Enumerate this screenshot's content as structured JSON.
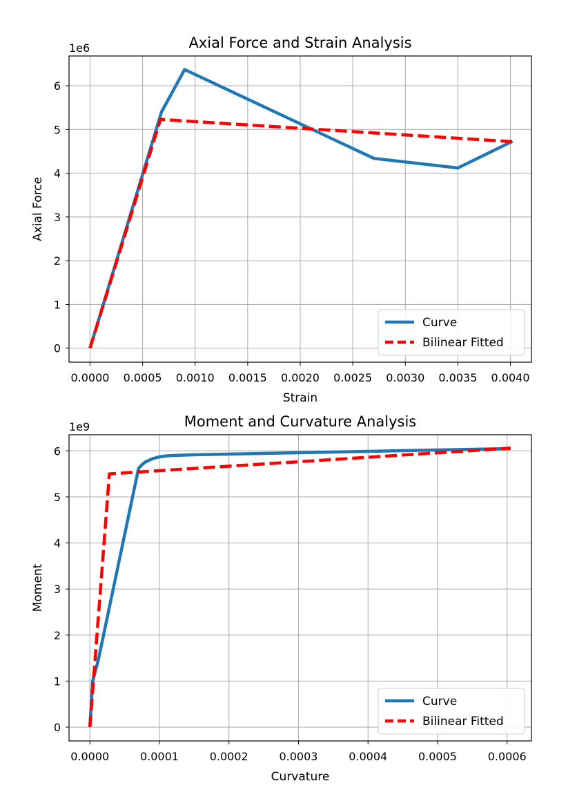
{
  "chart_data": [
    {
      "type": "line",
      "title": "Axial Force and Strain Analysis",
      "xlabel": "Strain",
      "ylabel": "Axial Force",
      "offset_text": "1e6",
      "grid": true,
      "legend_position": "bottom-right",
      "xlim": [
        -0.0002,
        0.0042
      ],
      "ylim": [
        -0.32,
        6.68
      ],
      "xticks": [
        0.0,
        0.0005,
        0.001,
        0.0015,
        0.002,
        0.0025,
        0.003,
        0.0035,
        0.004
      ],
      "xtick_labels": [
        "0.0000",
        "0.0005",
        "0.0010",
        "0.0015",
        "0.0020",
        "0.0025",
        "0.0030",
        "0.0035",
        "0.0040"
      ],
      "yticks": [
        0,
        1,
        2,
        3,
        4,
        5,
        6
      ],
      "ytick_labels": [
        "0",
        "1",
        "2",
        "3",
        "4",
        "5",
        "6"
      ],
      "series": [
        {
          "name": "Curve",
          "color": "#1f77b4",
          "dash": "solid",
          "x": [
            0.0,
            0.00068,
            0.0009,
            0.0027,
            0.0035,
            0.00402
          ],
          "y": [
            0.0,
            5.4,
            6.37,
            4.34,
            4.12,
            4.73
          ]
        },
        {
          "name": "Bilinear Fitted",
          "color": "#ff0000",
          "dash": "dashed",
          "x": [
            0.0,
            0.00067,
            0.00402
          ],
          "y": [
            0.0,
            5.23,
            4.72
          ]
        }
      ]
    },
    {
      "type": "line",
      "title": "Moment and Curvature Analysis",
      "xlabel": "Curvature",
      "ylabel": "Moment",
      "offset_text": "1e9",
      "grid": true,
      "legend_position": "bottom-right",
      "xlim": [
        -3e-05,
        0.000635
      ],
      "ylim": [
        -0.3,
        6.35
      ],
      "xticks": [
        0.0,
        0.0001,
        0.0002,
        0.0003,
        0.0004,
        0.0005,
        0.0006
      ],
      "xtick_labels": [
        "0.0000",
        "0.0001",
        "0.0002",
        "0.0003",
        "0.0004",
        "0.0005",
        "0.0006"
      ],
      "yticks": [
        0,
        1,
        2,
        3,
        4,
        5,
        6
      ],
      "ytick_labels": [
        "0",
        "1",
        "2",
        "3",
        "4",
        "5",
        "6"
      ],
      "series": [
        {
          "name": "Curve",
          "color": "#1f77b4",
          "dash": "solid",
          "x": [
            0.0,
            4e-06,
            1.2e-05,
            7e-05,
            7.5e-05,
            8e-05,
            9e-05,
            0.0001,
            0.00011,
            0.00012,
            0.00015,
            0.0002,
            0.0003,
            0.0004,
            0.0005,
            0.000605
          ],
          "y": [
            0.0,
            1.0,
            1.45,
            5.62,
            5.7,
            5.76,
            5.83,
            5.87,
            5.89,
            5.9,
            5.915,
            5.93,
            5.96,
            5.99,
            6.02,
            6.05
          ]
        },
        {
          "name": "Bilinear Fitted",
          "color": "#ff0000",
          "dash": "dashed",
          "x": [
            0.0,
            2.8e-05,
            0.000605
          ],
          "y": [
            0.0,
            5.5,
            6.06
          ]
        }
      ]
    }
  ]
}
